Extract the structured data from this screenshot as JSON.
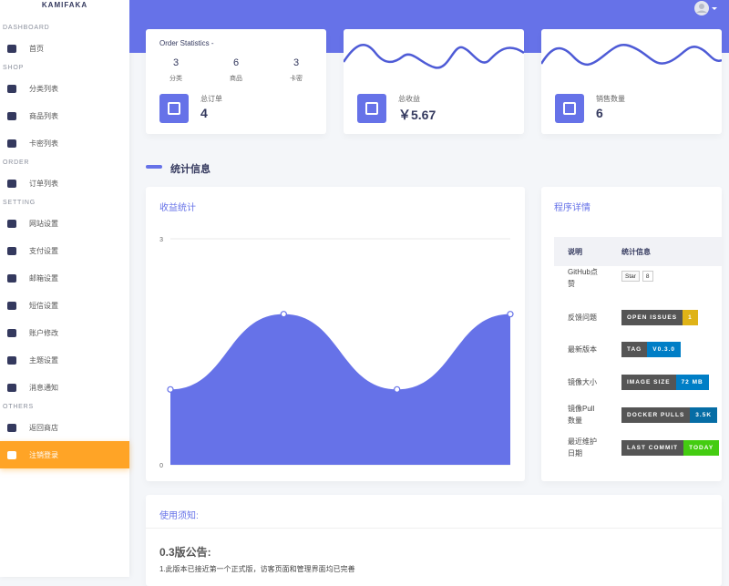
{
  "sidebar": {
    "brand": "KAMIFAKA",
    "sections": [
      {
        "title": "DASHBOARD",
        "items": [
          "首页"
        ]
      },
      {
        "title": "SHOP",
        "items": [
          "分类列表",
          "商品列表",
          "卡密列表"
        ]
      },
      {
        "title": "ORDER",
        "items": [
          "订单列表"
        ]
      },
      {
        "title": "SETTING",
        "items": [
          "网站设置",
          "支付设置",
          "邮箱设置",
          "短信设置",
          "账户修改",
          "主题设置",
          "消息通知"
        ]
      },
      {
        "title": "OTHERS",
        "items": [
          "返回商店",
          "注销登录"
        ]
      }
    ]
  },
  "order_stats": {
    "title": "Order Statistics -",
    "stats": [
      {
        "value": 3,
        "label": "分类"
      },
      {
        "value": 6,
        "label": "商品"
      },
      {
        "value": 3,
        "label": "卡密"
      }
    ],
    "total_label": "总订单",
    "total": 4
  },
  "revenue": {
    "label": "总收益",
    "value": "￥5.67"
  },
  "sales": {
    "label": "销售数量",
    "value": 6
  },
  "section_title": "统计信息",
  "revenue_chart": {
    "type": "area",
    "title": "收益统计",
    "values": [
      1,
      2,
      1,
      2
    ],
    "ylim": [
      0,
      3
    ],
    "yticks": [
      0,
      3
    ],
    "color": "#6672e8"
  },
  "program": {
    "title": "程序详情",
    "headers": [
      "说明",
      "统计信息"
    ],
    "rows": [
      {
        "label": "GitHub点赞",
        "badge": {
          "left": "Star",
          "right": "8",
          "color": "#ffffff"
        }
      },
      {
        "label": "反馈问题",
        "badge": {
          "left": "OPEN ISSUES",
          "right": "1",
          "color": "#dfb317"
        }
      },
      {
        "label": "最新版本",
        "badge": {
          "left": "TAG",
          "right": "V0.3.0",
          "color": "#007ec6"
        }
      },
      {
        "label": "镜像大小",
        "badge": {
          "left": "IMAGE SIZE",
          "right": "72 MB",
          "color": "#007ec6"
        }
      },
      {
        "label": "镜像Pull数量",
        "badge": {
          "left": "DOCKER PULLS",
          "right": "3.5K",
          "color": "#066da5"
        }
      },
      {
        "label": "最近维护日期",
        "badge": {
          "left": "LAST COMMIT",
          "right": "TODAY",
          "color": "#44cc11"
        }
      }
    ]
  },
  "notice": {
    "title": "使用须知:",
    "heading": "0.3版公告:",
    "text": "1.此版本已接近第一个正式版，访客页面和管理界面均已完善"
  }
}
